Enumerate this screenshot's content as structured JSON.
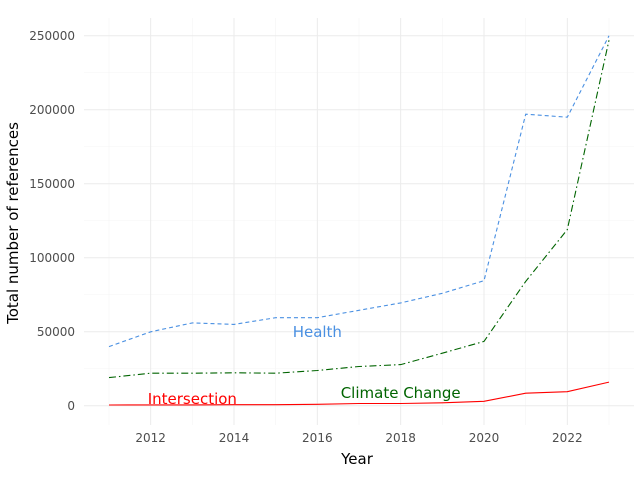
{
  "chart_data": {
    "type": "line",
    "xlabel": "Year",
    "ylabel": "Total number of references",
    "xlim": [
      2010.4,
      2023.6
    ],
    "ylim": [
      -13000,
      262000
    ],
    "x_ticks": [
      2012,
      2014,
      2016,
      2018,
      2020,
      2022
    ],
    "y_ticks": [
      0,
      50000,
      100000,
      150000,
      200000,
      250000
    ],
    "grid": true,
    "legend": "direct labels",
    "x": [
      2011,
      2012,
      2013,
      2014,
      2015,
      2016,
      2017,
      2018,
      2019,
      2020,
      2021,
      2022,
      2023
    ],
    "series": [
      {
        "name": "Health",
        "color": "#4a90e2",
        "dash": "4,3",
        "values": [
          40000,
          50000,
          56000,
          55000,
          59500,
          59500,
          64500,
          69500,
          76000,
          84500,
          197000,
          195000,
          250000
        ],
        "label_at": [
          2016,
          50000
        ]
      },
      {
        "name": "Climate Change",
        "color": "#006400",
        "dash": "7,3,1.5,3",
        "values": [
          19000,
          22000,
          22000,
          22300,
          22000,
          23800,
          26500,
          27800,
          35500,
          43500,
          84000,
          119000,
          247000
        ],
        "label_at": [
          2018,
          8500
        ]
      },
      {
        "name": "Intersection",
        "color": "#ff0000",
        "dash": "",
        "values": [
          500,
          600,
          600,
          700,
          700,
          1000,
          1500,
          1500,
          2000,
          3000,
          8500,
          9500,
          16000
        ],
        "label_at": [
          2013,
          4500
        ]
      }
    ]
  }
}
